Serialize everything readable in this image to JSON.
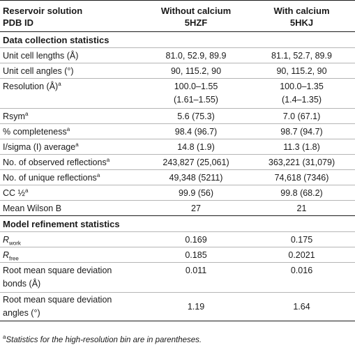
{
  "header": {
    "col1_line1": "Reservoir solution",
    "col1_line2": "PDB ID",
    "col2_line1": "Without calcium",
    "col2_line2": "5HZF",
    "col3_line1": "With calcium",
    "col3_line2": "5HKJ"
  },
  "sections": {
    "data_collection": "Data collection statistics",
    "model_refinement": "Model refinement statistics"
  },
  "footnote_marker": "a",
  "rows": {
    "unit_cell_lengths": {
      "label": "Unit cell lengths (Å)",
      "without": "81.0, 52.9, 89.9",
      "with": "81.1, 52.7, 89.9"
    },
    "unit_cell_angles": {
      "label": "Unit cell angles (°)",
      "without": "90, 115.2, 90",
      "with": "90, 115.2, 90"
    },
    "resolution": {
      "label": "Resolution (Å)",
      "without_1": "100.0–1.55",
      "without_2": "(1.61–1.55)",
      "with_1": "100.0–1.35",
      "with_2": "(1.4–1.35)"
    },
    "rsym": {
      "label": "Rsym",
      "without": "5.6 (75.3)",
      "with": "7.0 (67.1)"
    },
    "completeness": {
      "label": "% completeness",
      "without": "98.4 (96.7)",
      "with": "98.7 (94.7)"
    },
    "i_sigma": {
      "label": "I/sigma (I) average",
      "without": "14.8 (1.9)",
      "with": "11.3 (1.8)"
    },
    "observed": {
      "label": "No. of observed reflections",
      "without": "243,827 (25,061)",
      "with": "363,221 (31,079)"
    },
    "unique": {
      "label": "No. of unique reflections",
      "without": "49,348 (5211)",
      "with": "74,618 (7346)"
    },
    "cc_half": {
      "label": "CC ½",
      "without": "99.9 (56)",
      "with": "99.8 (68.2)"
    },
    "wilson": {
      "label": "Mean Wilson B",
      "without": "27",
      "with": "21"
    },
    "rwork": {
      "label_main": "R",
      "label_sub": "work",
      "without": "0.169",
      "with": "0.175"
    },
    "rfree": {
      "label_main": "R",
      "label_sub": "free",
      "without": "0.185",
      "with": "0.2021"
    },
    "rmsd_bonds": {
      "label_1": "Root mean square deviation",
      "label_2": "bonds (Å)",
      "without": "0.011",
      "with": "0.016"
    },
    "rmsd_angles": {
      "label_1": "Root mean square deviation",
      "label_2": "angles (°)",
      "without": "1.19",
      "with": "1.64"
    }
  },
  "footnote": {
    "marker": "a",
    "text": "Statistics for the high-resolution bin are in parentheses."
  }
}
